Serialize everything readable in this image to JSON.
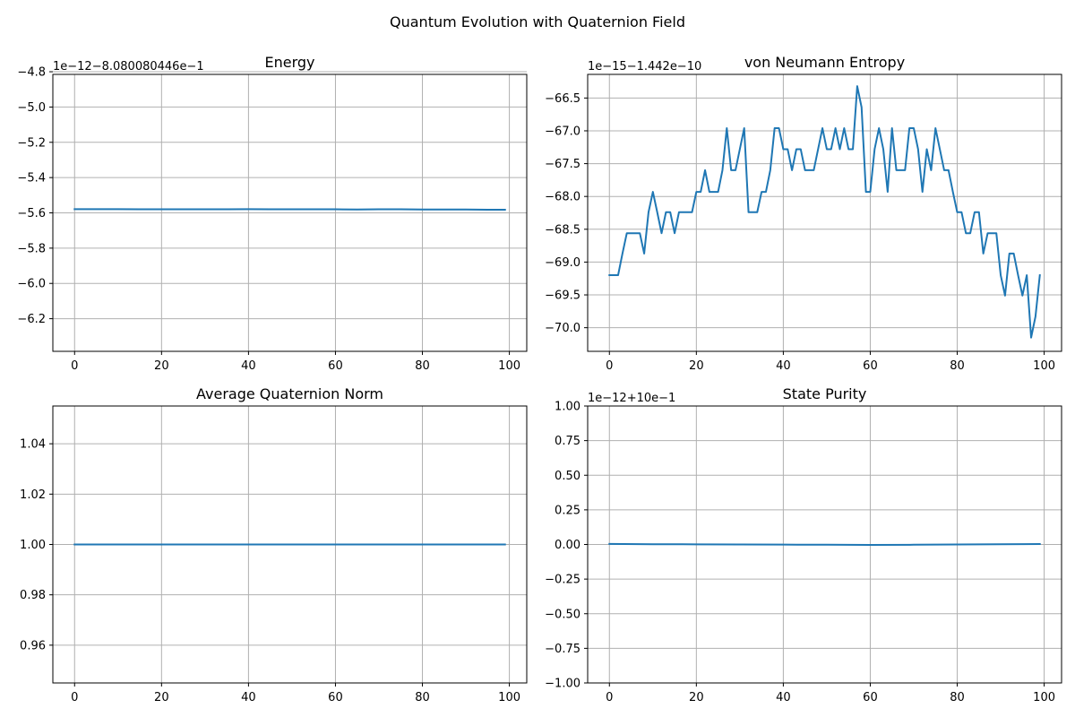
{
  "figure": {
    "suptitle": "Quantum Evolution with Quaternion Field",
    "line_color": "#1f77b4",
    "grid_color": "#b0b0b0"
  },
  "chart_data": [
    {
      "type": "line",
      "title": "Energy",
      "offset_label": "1e−12−8.080080446e−1",
      "xlabel": "",
      "ylabel": "",
      "xlim": [
        -5,
        104
      ],
      "ylim": [
        -6.385,
        -4.815
      ],
      "xticks": [
        0,
        20,
        40,
        60,
        80,
        100
      ],
      "xtick_labels": [
        "0",
        "20",
        "40",
        "60",
        "80",
        "100"
      ],
      "yticks": [
        -6.2,
        -6.0,
        -5.8,
        -5.6,
        -5.4,
        -5.2,
        -5.0,
        -4.8
      ],
      "ytick_labels": [
        "−6.2",
        "−6.0",
        "−5.8",
        "−5.6",
        "−5.4",
        "−5.2",
        "−5.0",
        "−4.8"
      ],
      "grid": true,
      "series": [
        {
          "x": [
            0,
            5,
            10,
            15,
            20,
            25,
            30,
            35,
            40,
            45,
            50,
            55,
            60,
            65,
            70,
            75,
            80,
            85,
            90,
            95,
            99
          ],
          "values": [
            -5.579,
            -5.579,
            -5.579,
            -5.58,
            -5.58,
            -5.58,
            -5.58,
            -5.58,
            -5.579,
            -5.58,
            -5.58,
            -5.58,
            -5.58,
            -5.581,
            -5.58,
            -5.58,
            -5.581,
            -5.581,
            -5.581,
            -5.582,
            -5.582
          ]
        }
      ]
    },
    {
      "type": "line",
      "title": "von Neumann Entropy",
      "offset_label": "1e−15−1.442e−10",
      "xlabel": "",
      "ylabel": "",
      "xlim": [
        -5,
        104
      ],
      "ylim": [
        -70.36,
        -66.14
      ],
      "xticks": [
        0,
        20,
        40,
        60,
        80,
        100
      ],
      "xtick_labels": [
        "0",
        "20",
        "40",
        "60",
        "80",
        "100"
      ],
      "yticks": [
        -70.0,
        -69.5,
        -69.0,
        -68.5,
        -68.0,
        -67.5,
        -67.0,
        -66.5
      ],
      "ytick_labels": [
        "−70.0",
        "−69.5",
        "−69.0",
        "−68.5",
        "−68.0",
        "−67.5",
        "−67.0",
        "−66.5"
      ],
      "grid": true,
      "series": [
        {
          "x": [
            0,
            1,
            2,
            3,
            4,
            5,
            6,
            7,
            8,
            9,
            10,
            11,
            12,
            13,
            14,
            15,
            16,
            17,
            18,
            19,
            20,
            21,
            22,
            23,
            24,
            25,
            26,
            27,
            28,
            29,
            30,
            31,
            32,
            33,
            34,
            35,
            36,
            37,
            38,
            39,
            40,
            41,
            42,
            43,
            44,
            45,
            46,
            47,
            48,
            49,
            50,
            51,
            52,
            53,
            54,
            55,
            56,
            57,
            58,
            59,
            60,
            61,
            62,
            63,
            64,
            65,
            66,
            67,
            68,
            69,
            70,
            71,
            72,
            73,
            74,
            75,
            76,
            77,
            78,
            79,
            80,
            81,
            82,
            83,
            84,
            85,
            86,
            87,
            88,
            89,
            90,
            91,
            92,
            93,
            94,
            95,
            96,
            97,
            98,
            99
          ],
          "values": [
            -69.2,
            -69.2,
            -69.2,
            -68.87,
            -68.56,
            -68.56,
            -68.56,
            -68.56,
            -68.87,
            -68.24,
            -67.93,
            -68.24,
            -68.56,
            -68.24,
            -68.24,
            -68.56,
            -68.24,
            -68.24,
            -68.24,
            -68.24,
            -67.93,
            -67.93,
            -67.6,
            -67.93,
            -67.93,
            -67.93,
            -67.6,
            -66.96,
            -67.6,
            -67.6,
            -67.28,
            -66.96,
            -68.24,
            -68.24,
            -68.24,
            -67.93,
            -67.93,
            -67.6,
            -66.96,
            -66.96,
            -67.28,
            -67.28,
            -67.6,
            -67.28,
            -67.28,
            -67.6,
            -67.6,
            -67.6,
            -67.28,
            -66.96,
            -67.28,
            -67.28,
            -66.96,
            -67.28,
            -66.96,
            -67.28,
            -67.28,
            -66.32,
            -66.64,
            -67.93,
            -67.93,
            -67.28,
            -66.96,
            -67.28,
            -67.93,
            -66.96,
            -67.6,
            -67.6,
            -67.6,
            -66.96,
            -66.96,
            -67.28,
            -67.93,
            -67.28,
            -67.6,
            -66.96,
            -67.28,
            -67.6,
            -67.6,
            -67.93,
            -68.24,
            -68.24,
            -68.56,
            -68.56,
            -68.24,
            -68.24,
            -68.87,
            -68.56,
            -68.56,
            -68.56,
            -69.2,
            -69.51,
            -68.87,
            -68.87,
            -69.2,
            -69.51,
            -69.2,
            -70.15,
            -69.83,
            -69.2
          ]
        }
      ]
    },
    {
      "type": "line",
      "title": "Average Quaternion Norm",
      "offset_label": "",
      "xlabel": "",
      "ylabel": "",
      "xlim": [
        -5,
        104
      ],
      "ylim": [
        0.945,
        1.055
      ],
      "xticks": [
        0,
        20,
        40,
        60,
        80,
        100
      ],
      "xtick_labels": [
        "0",
        "20",
        "40",
        "60",
        "80",
        "100"
      ],
      "yticks": [
        0.96,
        0.98,
        1.0,
        1.02,
        1.04
      ],
      "ytick_labels": [
        "0.96",
        "0.98",
        "1.00",
        "1.02",
        "1.04"
      ],
      "grid": true,
      "series": [
        {
          "x": [
            0,
            99
          ],
          "values": [
            1.0,
            1.0
          ]
        }
      ]
    },
    {
      "type": "line",
      "title": "State Purity",
      "offset_label": "1e−12+10e−1",
      "xlabel": "",
      "ylabel": "",
      "xlim": [
        -5,
        104
      ],
      "ylim": [
        -1.0,
        1.0
      ],
      "xticks": [
        0,
        20,
        40,
        60,
        80,
        100
      ],
      "xtick_labels": [
        "0",
        "20",
        "40",
        "60",
        "80",
        "100"
      ],
      "yticks": [
        -1.0,
        -0.75,
        -0.5,
        -0.25,
        0.0,
        0.25,
        0.5,
        0.75,
        1.0
      ],
      "ytick_labels": [
        "−1.00",
        "−0.75",
        "−0.50",
        "−0.25",
        "0.00",
        "0.25",
        "0.50",
        "0.75",
        "1.00"
      ],
      "grid": true,
      "series": [
        {
          "x": [
            0,
            10,
            20,
            30,
            40,
            50,
            60,
            70,
            80,
            90,
            99
          ],
          "values": [
            0.004,
            0.002,
            0.001,
            0.0,
            -0.001,
            -0.002,
            -0.003,
            -0.002,
            0.0,
            0.002,
            0.003
          ]
        }
      ]
    }
  ]
}
